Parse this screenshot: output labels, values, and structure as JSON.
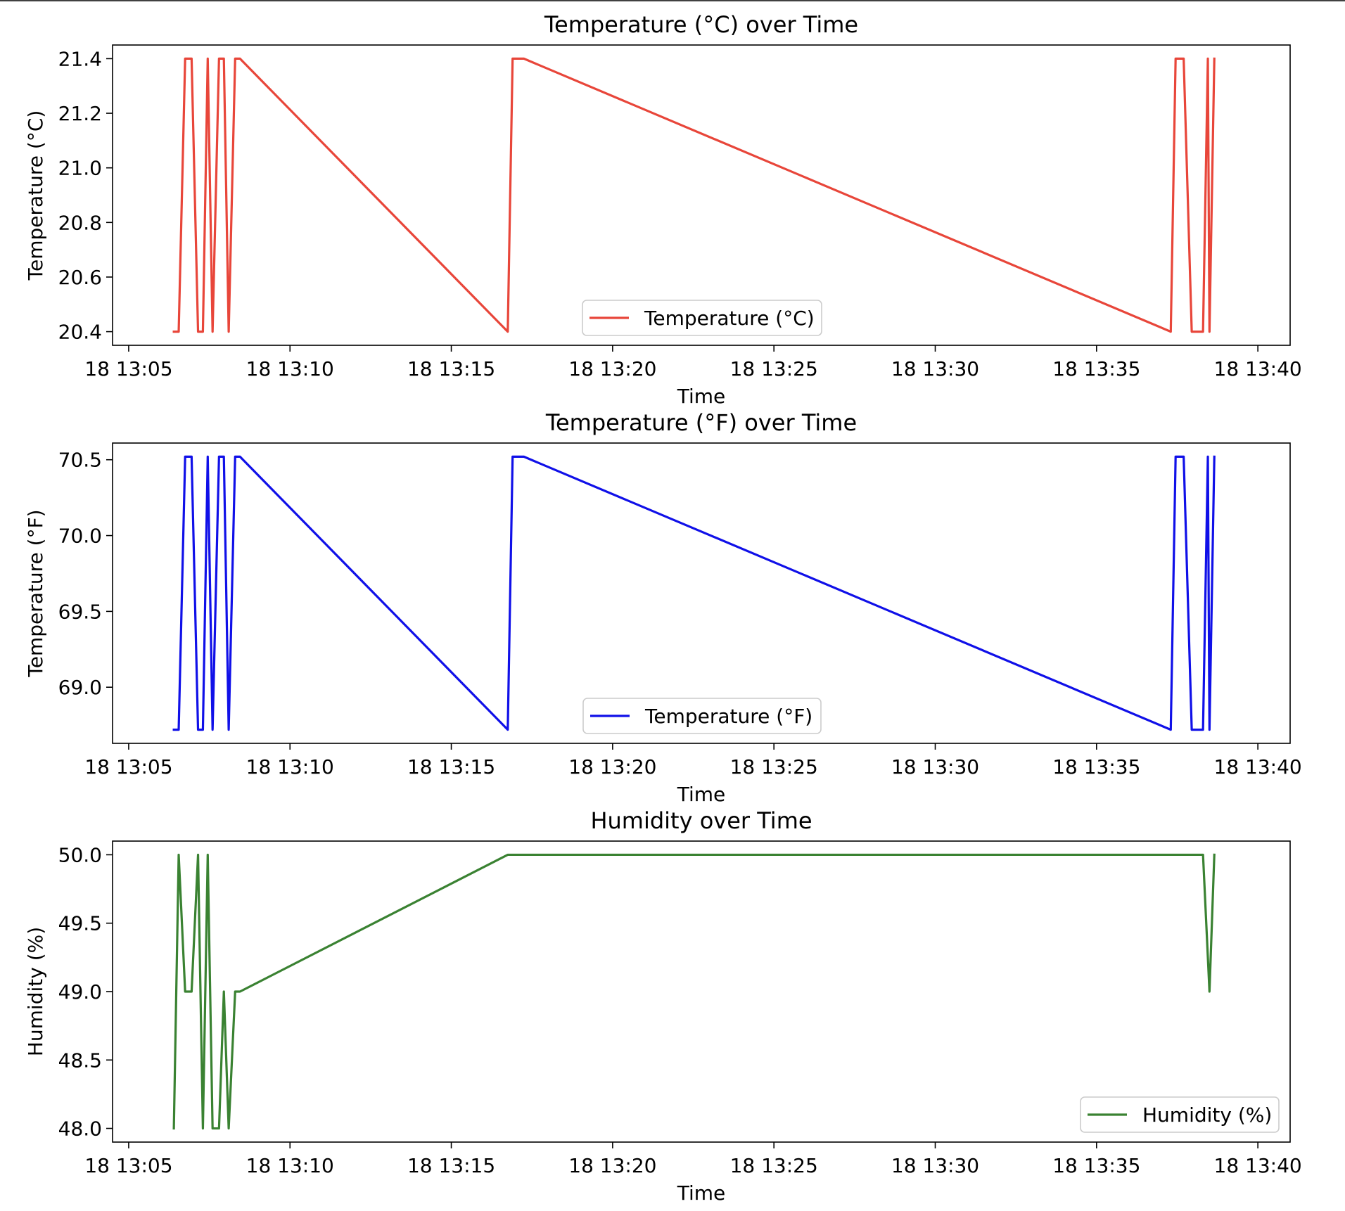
{
  "chart_data": [
    {
      "type": "line",
      "title": "Temperature (°C) over Time",
      "xlabel": "Time",
      "ylabel": "Temperature (°C)",
      "color": "#e8463a",
      "legend_label": "Temperature (°C)",
      "legend_loc": "lower center",
      "xlim": [
        "13:04.5",
        "13:41"
      ],
      "ylim": [
        20.35,
        21.45
      ],
      "x_tick_labels": [
        "18 13:05",
        "18 13:10",
        "18 13:15",
        "18 13:20",
        "18 13:25",
        "18 13:30",
        "18 13:35",
        "18 13:40"
      ],
      "x_tick_values": [
        5,
        10,
        15,
        20,
        25,
        30,
        35,
        40
      ],
      "y_tick_labels": [
        "20.4",
        "20.6",
        "20.8",
        "21.0",
        "21.2",
        "21.4"
      ],
      "y_tick_values": [
        20.4,
        20.6,
        20.8,
        21.0,
        21.2,
        21.4
      ],
      "series": [
        {
          "name": "Temperature (°C)",
          "x": [
            6.4,
            6.55,
            6.75,
            6.95,
            7.15,
            7.3,
            7.45,
            7.6,
            7.8,
            7.95,
            8.1,
            8.3,
            8.45,
            16.75,
            16.9,
            17.25,
            37.3,
            37.45,
            37.7,
            37.95,
            38.3,
            38.45,
            38.5,
            38.65
          ],
          "values": [
            20.4,
            20.4,
            21.4,
            21.4,
            20.4,
            20.4,
            21.4,
            20.4,
            21.4,
            21.4,
            20.4,
            21.4,
            21.4,
            20.4,
            21.4,
            21.4,
            20.4,
            21.4,
            21.4,
            20.4,
            20.4,
            21.4,
            20.4,
            21.4
          ]
        }
      ]
    },
    {
      "type": "line",
      "title": "Temperature (°F) over Time",
      "xlabel": "Time",
      "ylabel": "Temperature (°F)",
      "color": "#1010e8",
      "legend_label": "Temperature (°F)",
      "legend_loc": "lower center",
      "xlim": [
        "13:04.5",
        "13:41"
      ],
      "ylim": [
        68.63,
        70.61
      ],
      "x_tick_labels": [
        "18 13:05",
        "18 13:10",
        "18 13:15",
        "18 13:20",
        "18 13:25",
        "18 13:30",
        "18 13:35",
        "18 13:40"
      ],
      "x_tick_values": [
        5,
        10,
        15,
        20,
        25,
        30,
        35,
        40
      ],
      "y_tick_labels": [
        "69.0",
        "69.5",
        "70.0",
        "70.5"
      ],
      "y_tick_values": [
        69.0,
        69.5,
        70.0,
        70.5
      ],
      "series": [
        {
          "name": "Temperature (°F)",
          "x": [
            6.4,
            6.55,
            6.75,
            6.95,
            7.15,
            7.3,
            7.45,
            7.6,
            7.8,
            7.95,
            8.1,
            8.3,
            8.45,
            16.75,
            16.9,
            17.25,
            37.3,
            37.45,
            37.7,
            37.95,
            38.3,
            38.45,
            38.5,
            38.65
          ],
          "values": [
            68.72,
            68.72,
            70.52,
            70.52,
            68.72,
            68.72,
            70.52,
            68.72,
            70.52,
            70.52,
            68.72,
            70.52,
            70.52,
            68.72,
            70.52,
            70.52,
            68.72,
            70.52,
            70.52,
            68.72,
            68.72,
            70.52,
            68.72,
            70.52
          ]
        }
      ]
    },
    {
      "type": "line",
      "title": "Humidity over Time",
      "xlabel": "Time",
      "ylabel": "Humidity (%)",
      "color": "#3a8232",
      "legend_label": "Humidity (%)",
      "legend_loc": "lower right",
      "xlim": [
        "13:04.5",
        "13:41"
      ],
      "ylim": [
        47.9,
        50.1
      ],
      "x_tick_labels": [
        "18 13:05",
        "18 13:10",
        "18 13:15",
        "18 13:20",
        "18 13:25",
        "18 13:30",
        "18 13:35",
        "18 13:40"
      ],
      "x_tick_values": [
        5,
        10,
        15,
        20,
        25,
        30,
        35,
        40
      ],
      "y_tick_labels": [
        "48.0",
        "48.5",
        "49.0",
        "49.5",
        "50.0"
      ],
      "y_tick_values": [
        48.0,
        48.5,
        49.0,
        49.5,
        50.0
      ],
      "series": [
        {
          "name": "Humidity (%)",
          "x": [
            6.4,
            6.55,
            6.75,
            6.95,
            7.15,
            7.3,
            7.45,
            7.6,
            7.8,
            7.95,
            8.1,
            8.3,
            8.45,
            16.75,
            38.3,
            38.5,
            38.65
          ],
          "values": [
            48.0,
            50.0,
            49.0,
            49.0,
            50.0,
            48.0,
            50.0,
            48.0,
            48.0,
            49.0,
            48.0,
            49.0,
            49.0,
            50.0,
            50.0,
            49.0,
            50.0
          ]
        }
      ]
    }
  ]
}
